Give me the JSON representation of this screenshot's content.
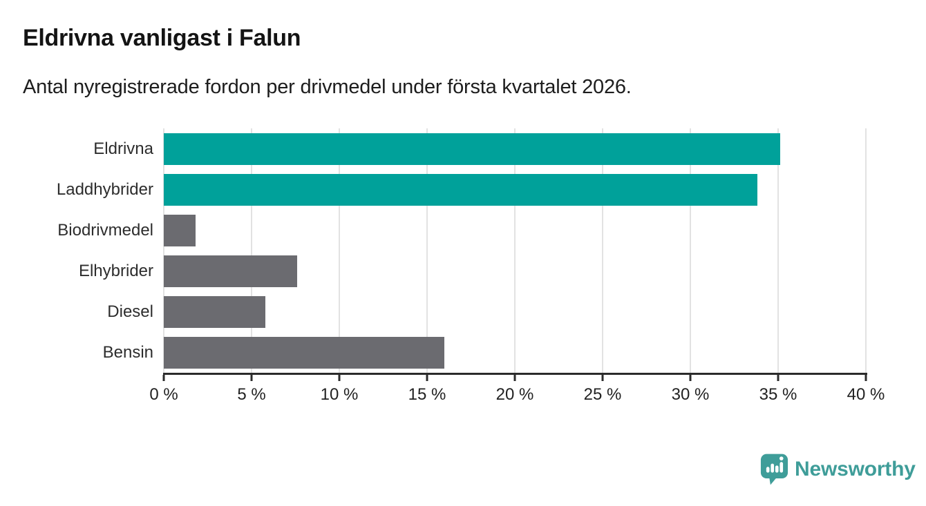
{
  "header": {
    "title": "Eldrivna vanligast i Falun",
    "subtitle": "Antal nyregistrerade fordon per drivmedel under första kvartalet 2026."
  },
  "chart_data": {
    "type": "bar",
    "orientation": "horizontal",
    "title": "Eldrivna vanligast i Falun",
    "subtitle": "Antal nyregistrerade fordon per drivmedel under första kvartalet 2026.",
    "categories": [
      "Eldrivna",
      "Laddhybrider",
      "Biodrivmedel",
      "Elhybrider",
      "Diesel",
      "Bensin"
    ],
    "values": [
      35.1,
      33.8,
      1.8,
      7.6,
      5.8,
      16.0
    ],
    "unit": "%",
    "xlabel": "",
    "ylabel": "",
    "xlim": [
      0,
      40
    ],
    "x_ticks": [
      0,
      5,
      10,
      15,
      20,
      25,
      30,
      35,
      40
    ],
    "x_tick_labels": [
      "0 %",
      "5 %",
      "10 %",
      "15 %",
      "20 %",
      "25 %",
      "30 %",
      "35 %",
      "40 %"
    ],
    "bar_colors": [
      "#00a19a",
      "#00a19a",
      "#6b6b70",
      "#6b6b70",
      "#6b6b70",
      "#6b6b70"
    ],
    "colors": {
      "highlight": "#00a19a",
      "muted": "#6b6b70",
      "gridline": "#e2e2e2",
      "axis": "#2b2b2b",
      "tick_text": "#222222",
      "category_text": "#2d2d2d"
    },
    "grid": "vertical-on",
    "legend": "none"
  },
  "footer": {
    "brand": "Newsworthy",
    "brand_color": "#3f9d99",
    "logo_icon": "speech-bubble-bar-chart-icon"
  }
}
